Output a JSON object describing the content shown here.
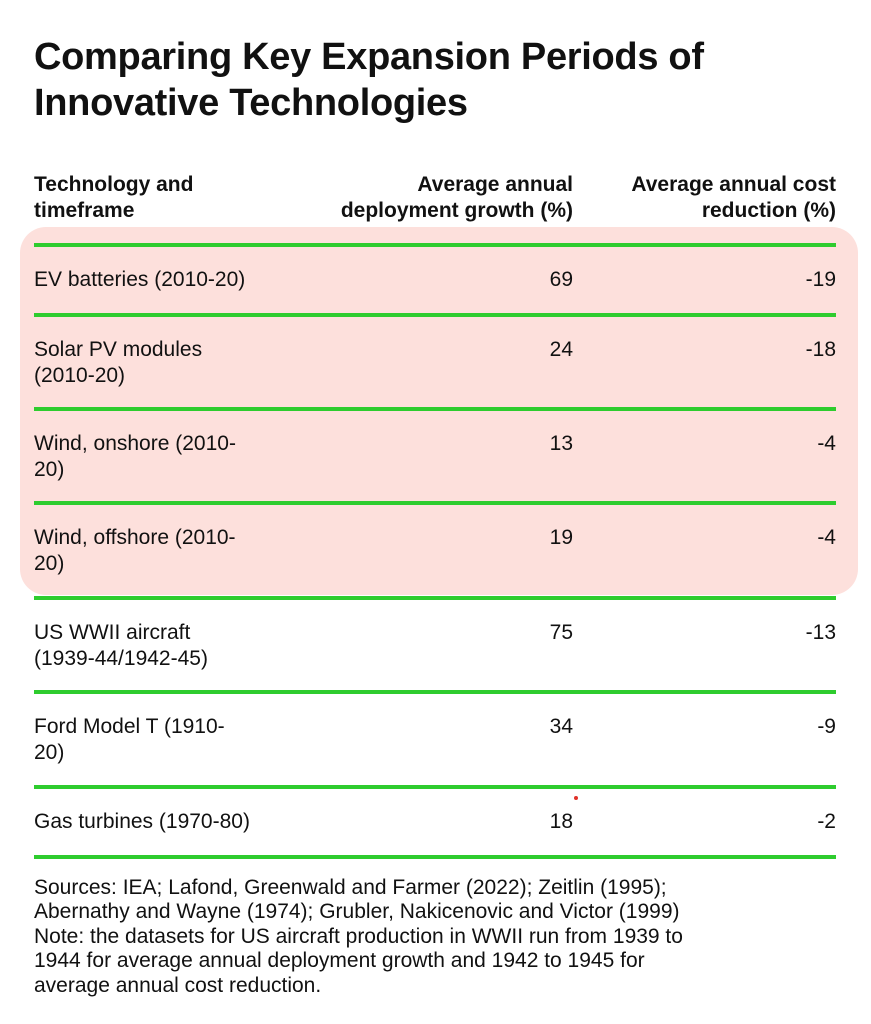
{
  "chart_data": {
    "type": "table",
    "title_lines": [
      "Comparing Key Expansion Periods of",
      "Innovative Technologies"
    ],
    "columns": [
      {
        "key": "tech",
        "lines": [
          "Technology and",
          "timeframe"
        ]
      },
      {
        "key": "growth",
        "lines": [
          "Average annual",
          "deployment growth (%)"
        ]
      },
      {
        "key": "cost",
        "lines": [
          "Average annual cost",
          "reduction (%)"
        ]
      }
    ],
    "rows": [
      {
        "tech": [
          "EV batteries (2010-20)"
        ],
        "growth": "69",
        "cost": "-19",
        "highlighted": true
      },
      {
        "tech": [
          "Solar PV modules",
          "(2010-20)"
        ],
        "growth": "24",
        "cost": "-18",
        "highlighted": true
      },
      {
        "tech": [
          "Wind, onshore (2010-",
          "20)"
        ],
        "growth": "13",
        "cost": "-4",
        "highlighted": true
      },
      {
        "tech": [
          "Wind, offshore (2010-",
          "20)"
        ],
        "growth": "19",
        "cost": "-4",
        "highlighted": true
      },
      {
        "tech": [
          "US WWII aircraft",
          "(1939-44/1942-45)"
        ],
        "growth": "75",
        "cost": "-13",
        "highlighted": false
      },
      {
        "tech": [
          "Ford Model T (1910-",
          "20)"
        ],
        "growth": "34",
        "cost": "-9",
        "highlighted": false
      },
      {
        "tech": [
          "Gas turbines (1970-80)"
        ],
        "growth": "18",
        "cost": "-2",
        "highlighted": false
      }
    ],
    "footer_lines": [
      "Sources: IEA; Lafond, Greenwald and Farmer (2022); Zeitlin (1995);",
      "Abernathy and Wayne (1974); Grubler, Nakicenovic and Victor (1999)",
      "Note: the datasets for US aircraft production in WWII run from 1939 to",
      "1944 for average annual deployment growth and 1942 to 1945 for",
      "average annual cost reduction."
    ]
  },
  "colors": {
    "rule": "#2ecc2e",
    "highlight": "#fde0dc",
    "text": "#111111"
  }
}
